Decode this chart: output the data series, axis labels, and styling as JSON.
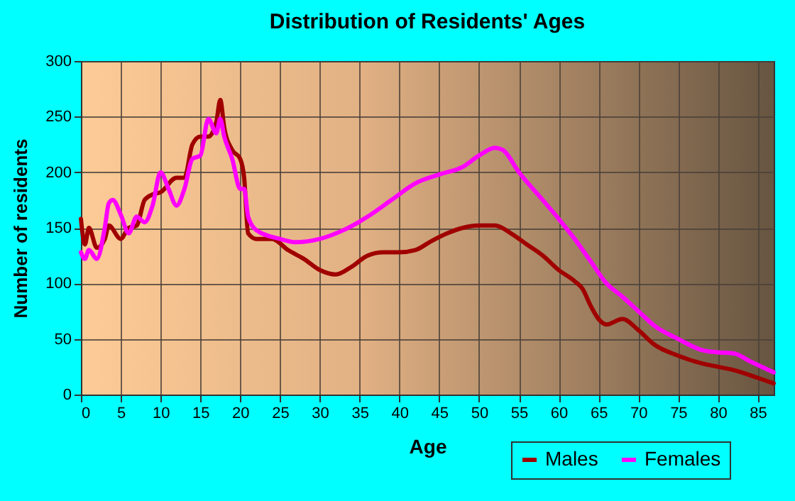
{
  "chart_data": {
    "type": "line",
    "title": "Distribution of Residents' Ages",
    "xlabel": "Age",
    "ylabel": "Number of residents",
    "xlim": [
      0,
      87
    ],
    "xticks": [
      0,
      5,
      10,
      15,
      20,
      25,
      30,
      35,
      40,
      45,
      50,
      55,
      60,
      65,
      70,
      75,
      80,
      85
    ],
    "ylim": [
      0,
      300
    ],
    "yticks": [
      0,
      50,
      100,
      150,
      200,
      250,
      300
    ],
    "grid": true,
    "legend": "bottom right",
    "marker": "none",
    "line_style": "solid",
    "series": [
      {
        "name": "Males",
        "color": "#a00000",
        "x": [
          0,
          0.5,
          1,
          2,
          3,
          3.5,
          5,
          6,
          7,
          8,
          9,
          10,
          12,
          13,
          14,
          15,
          16,
          17,
          17.5,
          18,
          19,
          20,
          20.5,
          21,
          22,
          24,
          26,
          28,
          30,
          32,
          34,
          36,
          38,
          40,
          42,
          44,
          46,
          48,
          50,
          52,
          54,
          56,
          58,
          60,
          62,
          63,
          64,
          65,
          66,
          68,
          70,
          72,
          75,
          78,
          80,
          82,
          85,
          87
        ],
        "values": [
          158,
          135,
          150,
          132,
          140,
          152,
          140,
          150,
          152,
          175,
          180,
          182,
          195,
          195,
          225,
          232,
          232,
          245,
          265,
          240,
          220,
          212,
          195,
          145,
          140,
          140,
          130,
          122,
          112,
          108,
          115,
          125,
          128,
          128,
          130,
          138,
          145,
          150,
          152,
          152,
          145,
          135,
          125,
          112,
          102,
          95,
          80,
          68,
          63,
          68,
          58,
          45,
          35,
          28,
          25,
          22,
          15,
          10
        ]
      },
      {
        "name": "Females",
        "color": "#ff00ff",
        "x": [
          0,
          0.5,
          1,
          2,
          3,
          3.5,
          4,
          5,
          6,
          7,
          8,
          9,
          10,
          11,
          12,
          13,
          14,
          15,
          16,
          17,
          17.5,
          18,
          19,
          20,
          20.5,
          21,
          22,
          25,
          27,
          30,
          33,
          36,
          39,
          42,
          45,
          48,
          50,
          52,
          53,
          55,
          58,
          60,
          62,
          64,
          66,
          68,
          70,
          72,
          75,
          78,
          80,
          82,
          84,
          87
        ],
        "values": [
          128,
          122,
          130,
          122,
          150,
          172,
          175,
          162,
          145,
          160,
          155,
          170,
          200,
          185,
          170,
          185,
          212,
          215,
          248,
          235,
          248,
          232,
          212,
          185,
          185,
          160,
          148,
          140,
          137,
          140,
          148,
          160,
          175,
          190,
          198,
          205,
          215,
          222,
          220,
          200,
          175,
          158,
          140,
          120,
          100,
          88,
          75,
          62,
          50,
          40,
          38,
          37,
          30,
          20
        ]
      }
    ]
  }
}
